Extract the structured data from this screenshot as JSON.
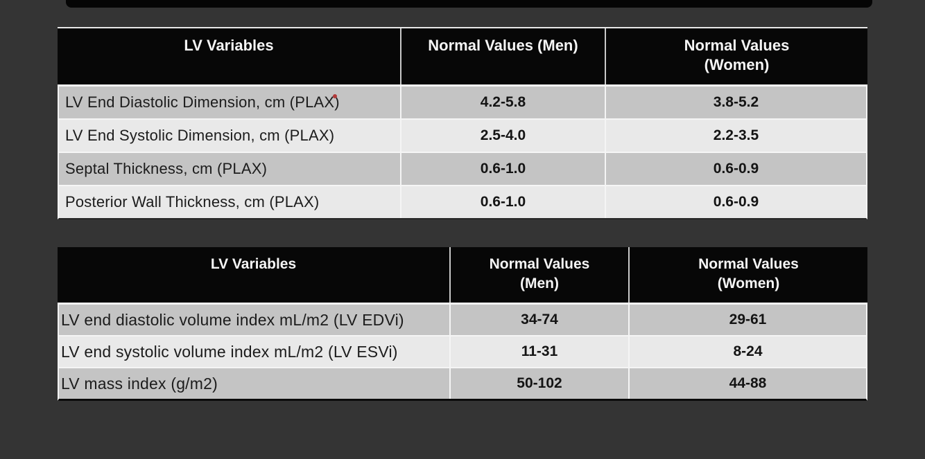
{
  "page": {
    "background_color": "#343434",
    "top_bar_color": "#050505",
    "header_bg_color": "#070707",
    "header_text_color": "#f5f5f5",
    "row_dark_color": "#c4c4c4",
    "row_light_color": "#e9e9e9",
    "marker_red_color": "#b23a3a"
  },
  "table1": {
    "headers": {
      "variables": "LV Variables",
      "men": [
        "Normal Values (Men)"
      ],
      "women": [
        "Normal Values",
        "(Women)"
      ]
    },
    "rows": [
      {
        "variable": "LV End Diastolic Dimension, cm (PLAX)",
        "men": "4.2-5.8",
        "women": "3.8-5.2"
      },
      {
        "variable": "LV End Systolic Dimension, cm (PLAX)",
        "men": "2.5-4.0",
        "women": "2.2-3.5"
      },
      {
        "variable": "Septal Thickness, cm (PLAX)",
        "men": "0.6-1.0",
        "women": "0.6-0.9"
      },
      {
        "variable": "Posterior Wall Thickness, cm (PLAX)",
        "men": "0.6-1.0",
        "women": "0.6-0.9"
      }
    ]
  },
  "table2": {
    "headers": {
      "variables": "LV Variables",
      "men": [
        "Normal Values",
        "(Men)"
      ],
      "women": [
        "Normal Values",
        "(Women)"
      ]
    },
    "rows": [
      {
        "variable": "LV end diastolic volume index mL/m2 (LV EDVi)",
        "men": "34-74",
        "women": "29-61"
      },
      {
        "variable": "LV end systolic volume index mL/m2 (LV ESVi)",
        "men": "11-31",
        "women": "8-24"
      },
      {
        "variable": "LV mass index (g/m2)",
        "men": "50-102",
        "women": "44-88"
      }
    ]
  }
}
